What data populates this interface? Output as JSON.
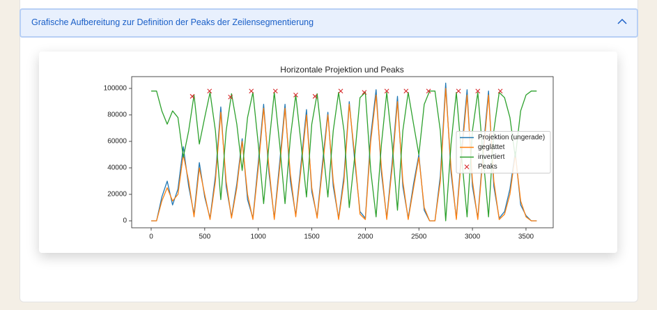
{
  "header": {
    "title": "Grafische Aufbereitung zur Definition der Peaks der Zeilensegmentierung"
  },
  "chart_data": {
    "type": "line",
    "title": "Horizontale Projektion und Peaks",
    "x": [
      0,
      50,
      100,
      150,
      200,
      250,
      300,
      350,
      400,
      450,
      500,
      550,
      600,
      650,
      700,
      750,
      800,
      850,
      900,
      950,
      1000,
      1050,
      1100,
      1150,
      1200,
      1250,
      1300,
      1350,
      1400,
      1450,
      1500,
      1550,
      1600,
      1650,
      1700,
      1750,
      1800,
      1850,
      1900,
      1950,
      2000,
      2050,
      2100,
      2150,
      2200,
      2250,
      2300,
      2350,
      2400,
      2450,
      2500,
      2550,
      2600,
      2650,
      2700,
      2750,
      2800,
      2850,
      2900,
      2950,
      3000,
      3050,
      3100,
      3150,
      3200,
      3250,
      3300,
      3350,
      3400,
      3450,
      3500,
      3550,
      3600
    ],
    "series": [
      {
        "name": "Projektion (ungerade)",
        "color": "#1f77b4",
        "values": [
          0,
          0,
          18000,
          30000,
          12000,
          24000,
          56000,
          26000,
          5000,
          44000,
          18000,
          2000,
          34000,
          86000,
          26000,
          3000,
          28000,
          62000,
          16000,
          2000,
          44000,
          88000,
          36000,
          2000,
          44000,
          88000,
          30000,
          4000,
          44000,
          84000,
          22000,
          3000,
          44000,
          82000,
          26000,
          2000,
          34000,
          90000,
          46000,
          7000,
          2000,
          64000,
          99000,
          36000,
          2000,
          44000,
          94000,
          26000,
          2000,
          28000,
          50000,
          8000,
          0,
          0,
          34000,
          104000,
          36000,
          2000,
          54000,
          99000,
          26000,
          2000,
          54000,
          98000,
          26000,
          2000,
          7000,
          24000,
          52000,
          12000,
          4000,
          0,
          0
        ]
      },
      {
        "name": "geglättet",
        "color": "#ff7f0e",
        "values": [
          0,
          0,
          15000,
          25000,
          15000,
          20000,
          50000,
          30000,
          3000,
          40000,
          20000,
          1000,
          30000,
          82000,
          30000,
          2000,
          25000,
          60000,
          20000,
          1000,
          40000,
          85000,
          40000,
          1000,
          40000,
          85000,
          35000,
          3000,
          40000,
          80000,
          25000,
          2000,
          40000,
          80000,
          30000,
          1000,
          30000,
          88000,
          50000,
          5000,
          1000,
          60000,
          95000,
          40000,
          1000,
          40000,
          90000,
          30000,
          1000,
          25000,
          48000,
          10000,
          0,
          0,
          30000,
          100000,
          40000,
          1000,
          50000,
          95000,
          30000,
          1000,
          50000,
          95000,
          30000,
          1000,
          5000,
          20000,
          50000,
          15000,
          3000,
          0,
          0
        ]
      },
      {
        "name": "invertiert",
        "color": "#2ca02c",
        "values": [
          98000,
          98000,
          83000,
          73000,
          83000,
          78000,
          48000,
          68000,
          95000,
          58000,
          78000,
          97000,
          68000,
          16000,
          68000,
          96000,
          73000,
          38000,
          78000,
          97000,
          58000,
          13000,
          58000,
          97000,
          58000,
          13000,
          63000,
          95000,
          58000,
          18000,
          73000,
          96000,
          58000,
          18000,
          68000,
          97000,
          68000,
          10000,
          48000,
          93000,
          97000,
          38000,
          3000,
          58000,
          97000,
          58000,
          8000,
          68000,
          97000,
          73000,
          50000,
          88000,
          98000,
          98000,
          68000,
          0,
          58000,
          97000,
          48000,
          3000,
          68000,
          97000,
          48000,
          3000,
          68000,
          97000,
          93000,
          78000,
          48000,
          83000,
          95000,
          98000,
          98000
        ]
      },
      {
        "name": "Peaks",
        "color": "#d62728",
        "marker": "x",
        "x": [
          384,
          545,
          740,
          935,
          1160,
          1350,
          1530,
          1770,
          1990,
          2200,
          2380,
          2590,
          2870,
          3050,
          3260
        ],
        "values": [
          94000,
          98000,
          93500,
          98000,
          98000,
          95000,
          94000,
          98000,
          97000,
          98000,
          98000,
          98000,
          98000,
          98000,
          98000
        ]
      }
    ],
    "xlim": [
      -182,
      3754
    ],
    "ylim": [
      -5260,
      108900
    ],
    "xticks": [
      0,
      500,
      1000,
      1500,
      2000,
      2500,
      3000,
      3500
    ],
    "yticks": [
      0,
      20000,
      40000,
      60000,
      80000,
      100000
    ],
    "legend": "center right"
  }
}
